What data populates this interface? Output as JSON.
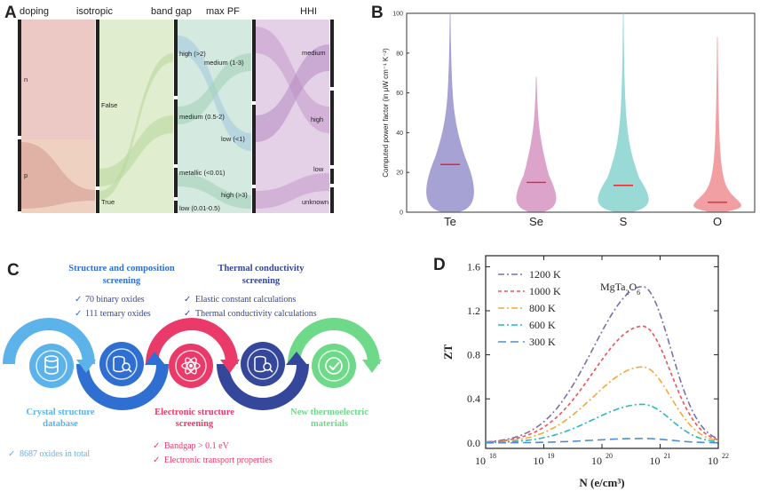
{
  "panels": {
    "A": "A",
    "B": "B",
    "C": "C",
    "D": "D"
  },
  "chart_data": [
    {
      "type": "sankey",
      "panel": "A",
      "columns": [
        "doping",
        "isotropic",
        "band gap",
        "max PF",
        "HHI"
      ],
      "doping_nodes": [
        "n",
        "p"
      ],
      "isotropic_nodes": [
        "False",
        "True"
      ],
      "band_gap_nodes": [
        "high (>2)",
        "medium (0.5-2)",
        "metallic (<0.01)",
        "low (0.01-0.5)"
      ],
      "max_pf_nodes": [
        "medium (1-3)",
        "low (<1)",
        "high (>3)"
      ],
      "hhi_nodes": [
        "medium",
        "high",
        "low",
        "unknown"
      ]
    },
    {
      "type": "violin",
      "panel": "B",
      "ylabel": "Computed power factor (in μW cm⁻¹ K⁻²)",
      "ylim": [
        0,
        100
      ],
      "yticks": [
        0,
        20,
        40,
        60,
        80,
        100
      ],
      "categories": [
        "Te",
        "Se",
        "S",
        "O"
      ],
      "medians": [
        24,
        15,
        13.5,
        5
      ],
      "max": [
        100,
        68,
        100,
        88
      ],
      "colors": [
        "#9d98cf",
        "#d99bc5",
        "#8fd6d2",
        "#f0959a"
      ]
    },
    {
      "type": "line",
      "panel": "D",
      "title": "MgTa2O6",
      "xlabel": "N (e/cm³)",
      "ylabel": "ZT",
      "xscale": "log",
      "xlim_exp": [
        18,
        22
      ],
      "xtick_exp": [
        "18",
        "19",
        "20",
        "21",
        "22"
      ],
      "ylim": [
        -0.05,
        1.7
      ],
      "yticks": [
        "0.0",
        "0.4",
        "0.8",
        "1.2",
        "1.6"
      ],
      "peak_log10_N": 20.7,
      "series": [
        {
          "name": "1200 K",
          "peak": 1.42,
          "color": "#7b6fa8",
          "dash": "7,3,2,3"
        },
        {
          "name": "1000 K",
          "peak": 1.06,
          "color": "#e8545a",
          "dash": "4,3"
        },
        {
          "name": "800 K",
          "peak": 0.69,
          "color": "#f2a93b",
          "dash": "7,3,2,3"
        },
        {
          "name": "600 K",
          "peak": 0.35,
          "color": "#27b9c4",
          "dash": "7,3,2,3"
        },
        {
          "name": "300 K",
          "peak": 0.04,
          "color": "#4a8fd6",
          "dash": "9,5"
        }
      ]
    }
  ],
  "workflow": {
    "structure_title": "Structure and composition\nscreening",
    "structure_items": [
      "70 binary oxides",
      "111 ternary oxides"
    ],
    "thermal_title": "Thermal conductivity\nscreening",
    "thermal_items": [
      "Elastic constant calculations",
      "Thermal conductivity calculations"
    ],
    "crystal_label": "Crystal structure\ndatabase",
    "crystal_note": "8687 oxides in total",
    "electronic_label": "Electronic structure\nscreening",
    "electronic_items": [
      "Bandgap > 0.1 eV",
      "Electronic transport properties"
    ],
    "new_label": "New thermoelectric\nmaterials",
    "colors": {
      "blue_light": "#5bb3ea",
      "blue_dark": "#2f6fd1",
      "pink": "#ea3a6a",
      "navy": "#35479a",
      "green": "#6ed989"
    }
  }
}
